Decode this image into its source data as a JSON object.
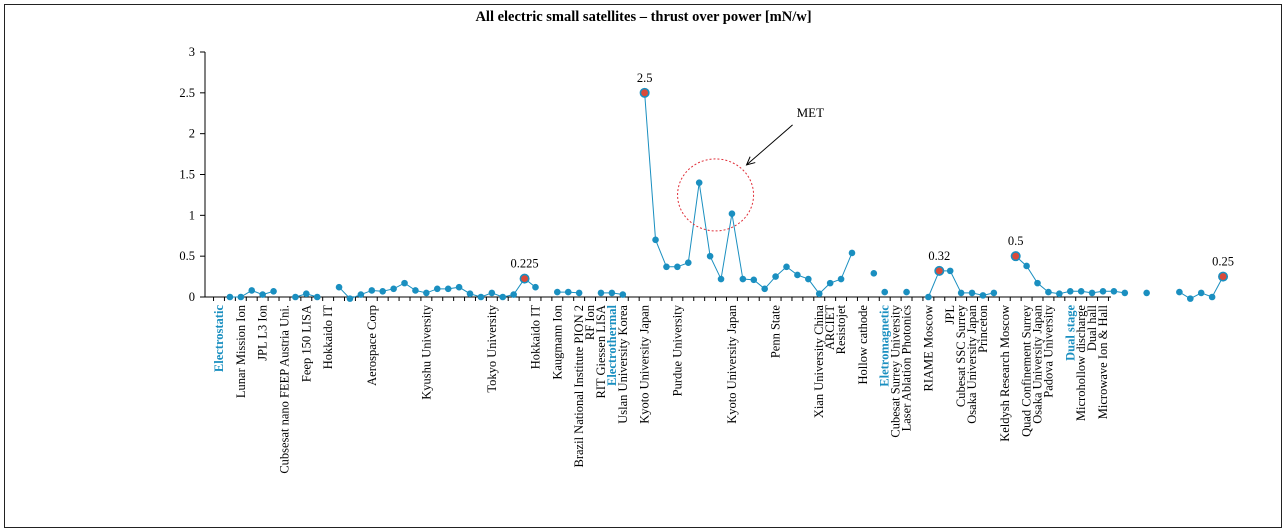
{
  "chart_data": {
    "type": "line",
    "title": "All electric small satellites – thrust over power [mN/w]",
    "xlabel": "",
    "ylabel": "",
    "ylim": [
      0,
      3
    ],
    "yticks": [
      "0",
      "0.5",
      "1",
      "1.5",
      "2",
      "2.5",
      "3"
    ],
    "grid": false,
    "legend": "none",
    "colors": {
      "line": "#1a8fc0",
      "point": "#1a8fc0",
      "highlight_fill": "#d94a3a",
      "group_label": "#1a8fc0",
      "axis": "#000000",
      "ellipse": "#e0303a"
    },
    "x_labels": [
      {
        "text": "Electrostatic",
        "group": true
      },
      {
        "text": "Lunar Mission Ion"
      },
      {
        "text": "JPL L3 Ion"
      },
      {
        "text": "Cubsesat nano FEEP Austria Uni."
      },
      {
        "text": "Feep 150 LISA"
      },
      {
        "text": "Hokkaido IT"
      },
      {
        "text": "Aerospace Corp"
      },
      {
        "text": "Kyushu University"
      },
      {
        "text": "Tokyo University"
      },
      {
        "text": "Hokkaido IT"
      },
      {
        "text": "Kaugmann Ion"
      },
      {
        "text": "Brazil National Institute PION 2"
      },
      {
        "text": "RF Ion"
      },
      {
        "text": "RIT Giessen LISA"
      },
      {
        "text": "Electrothermal",
        "group": true
      },
      {
        "text": "Uslan University Korea"
      },
      {
        "text": "Kyoto University Japan"
      },
      {
        "text": "Purdue University"
      },
      {
        "text": "Kyoto University Japan"
      },
      {
        "text": "Penn State"
      },
      {
        "text": "Xian University China"
      },
      {
        "text": "ARCIET"
      },
      {
        "text": "Resistojet"
      },
      {
        "text": "Hollow cathode"
      },
      {
        "text": "Eletromagnetic",
        "group": true
      },
      {
        "text": "Cubesat Surrey University"
      },
      {
        "text": "Laser Ablation Photonics"
      },
      {
        "text": "RIAME Moscow"
      },
      {
        "text": "JPL"
      },
      {
        "text": "Cubesat SSC Surrey"
      },
      {
        "text": "Osaka University Japan"
      },
      {
        "text": "Princeton"
      },
      {
        "text": "Keldysh Research Moscow"
      },
      {
        "text": "Quad Confinement Surrey"
      },
      {
        "text": "Osaka University Japan"
      },
      {
        "text": "Padova University"
      },
      {
        "text": "Dual stage",
        "group": true
      },
      {
        "text": "Microhollow discharge"
      },
      {
        "text": "Dual hall"
      },
      {
        "text": "Microwave Ion & Hall"
      }
    ],
    "label_index": [
      0,
      2,
      4,
      6,
      8,
      10,
      14,
      19,
      25,
      29,
      31,
      33,
      34,
      35,
      36,
      37,
      39,
      42,
      47,
      51,
      55,
      56,
      57,
      59,
      61,
      62,
      63,
      65,
      67,
      68,
      69,
      70,
      72,
      74,
      75,
      76,
      78,
      79,
      80,
      81
    ],
    "n_points": 82,
    "series": [
      {
        "segments": [
          [
            [
              1,
              0.0
            ],
            [
              2,
              0.0
            ],
            [
              3,
              0.08
            ],
            [
              4,
              0.03
            ],
            [
              5,
              0.07
            ]
          ],
          [
            [
              7,
              0.0
            ],
            [
              8,
              0.04
            ],
            [
              9,
              0.0
            ]
          ],
          [
            [
              11,
              0.12
            ],
            [
              12,
              -0.02
            ],
            [
              13,
              0.03
            ],
            [
              14,
              0.08
            ],
            [
              15,
              0.07
            ],
            [
              16,
              0.1
            ],
            [
              17,
              0.17
            ],
            [
              18,
              0.08
            ],
            [
              19,
              0.05
            ],
            [
              20,
              0.1
            ],
            [
              21,
              0.1
            ],
            [
              22,
              0.12
            ],
            [
              23,
              0.04
            ],
            [
              24,
              0.0
            ],
            [
              25,
              0.05
            ],
            [
              26,
              0.0
            ],
            [
              27,
              0.03
            ],
            [
              28,
              0.225
            ],
            [
              29,
              0.12
            ]
          ],
          [
            [
              31,
              0.06
            ],
            [
              32,
              0.06
            ],
            [
              33,
              0.05
            ]
          ],
          [
            [
              35,
              0.05
            ],
            [
              36,
              0.05
            ],
            [
              37,
              0.03
            ]
          ],
          [
            [
              39,
              2.5
            ],
            [
              40,
              0.7
            ],
            [
              41,
              0.37
            ],
            [
              42,
              0.37
            ],
            [
              43,
              0.42
            ],
            [
              44,
              1.4
            ],
            [
              45,
              0.5
            ],
            [
              46,
              0.22
            ],
            [
              47,
              1.02
            ],
            [
              48,
              0.22
            ],
            [
              49,
              0.21
            ],
            [
              50,
              0.1
            ],
            [
              51,
              0.25
            ],
            [
              52,
              0.37
            ],
            [
              53,
              0.27
            ],
            [
              54,
              0.22
            ],
            [
              55,
              0.04
            ],
            [
              56,
              0.17
            ],
            [
              57,
              0.22
            ],
            [
              58,
              0.54
            ]
          ],
          [
            [
              60,
              0.29
            ]
          ],
          [
            [
              61,
              0.06
            ]
          ],
          [
            [
              63,
              0.06
            ]
          ],
          [
            [
              65,
              0.0
            ],
            [
              66,
              0.32
            ],
            [
              67,
              0.32
            ],
            [
              68,
              0.05
            ],
            [
              69,
              0.05
            ],
            [
              70,
              0.02
            ],
            [
              71,
              0.05
            ]
          ],
          [
            [
              73,
              0.5
            ],
            [
              74,
              0.38
            ],
            [
              75,
              0.17
            ],
            [
              76,
              0.06
            ],
            [
              77,
              0.04
            ],
            [
              78,
              0.07
            ],
            [
              79,
              0.07
            ],
            [
              80,
              0.05
            ],
            [
              81,
              0.07
            ],
            [
              82,
              0.07
            ],
            [
              83,
              0.05
            ]
          ],
          [
            [
              85,
              0.05
            ]
          ],
          [
            [
              88,
              0.06
            ],
            [
              89,
              -0.02
            ],
            [
              90,
              0.05
            ],
            [
              91,
              0.0
            ],
            [
              92,
              0.25
            ]
          ]
        ]
      }
    ],
    "highlights": [
      {
        "x": 28,
        "y": 0.225,
        "label": "0.225"
      },
      {
        "x": 39,
        "y": 2.5,
        "label": "2.5"
      },
      {
        "x": 66,
        "y": 0.32,
        "label": "0.32"
      },
      {
        "x": 73,
        "y": 0.5,
        "label": "0.5"
      },
      {
        "x": 92,
        "y": 0.25,
        "label": "0.25"
      }
    ],
    "annotation": {
      "text": "MET",
      "x_center": 45.5,
      "y_center": 1.25
    }
  }
}
